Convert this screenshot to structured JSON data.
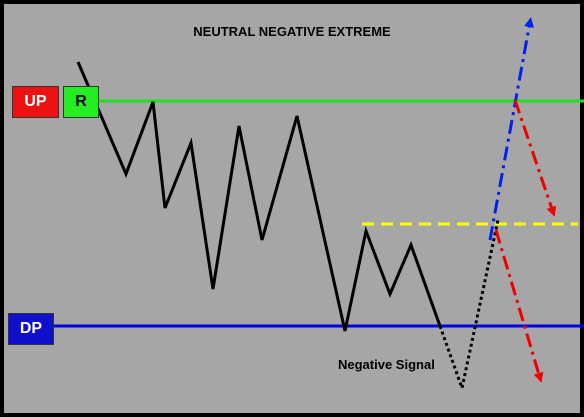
{
  "title": "NEUTRAL NEGATIVE EXTREME",
  "labels": {
    "up": "UP",
    "r": "R",
    "dp": "DP",
    "negative_signal": "Negative Signal"
  },
  "colors": {
    "background": "#a6a6a6",
    "frame": "#000000",
    "up_line": "#22dd22",
    "dp_line": "#0000dd",
    "dashed_level": "#ffff00",
    "up_arrow": "#0022ee",
    "down_arrows": "#ee0000",
    "price_path": "#000000"
  }
}
